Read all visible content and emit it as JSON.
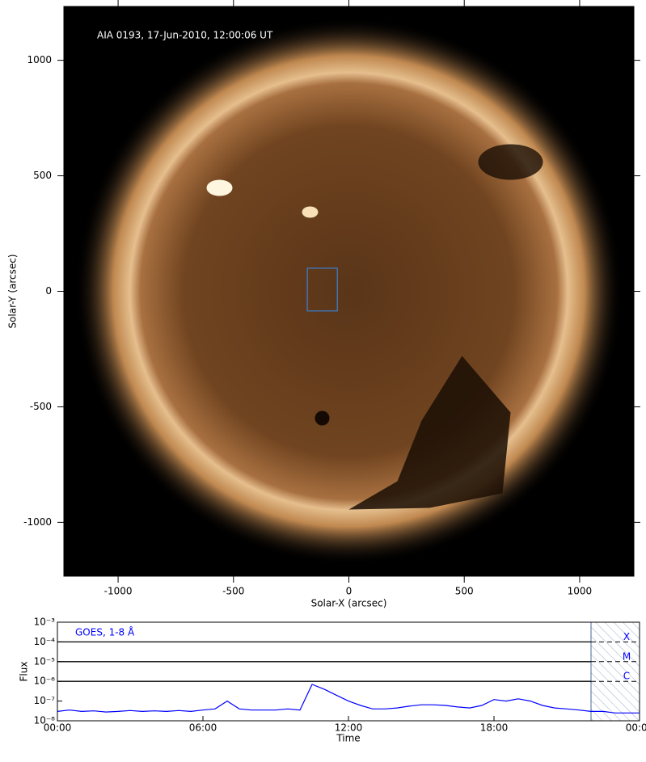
{
  "chart_data": [
    {
      "type": "image",
      "annotation": "AIA 0193, 17-Jun-2010, 12:00:06 UT",
      "xlabel": "Solar-X (arcsec)",
      "ylabel": "Solar-Y (arcsec)",
      "xlim": [
        -1235,
        1235
      ],
      "ylim": [
        -1233,
        1233
      ],
      "xticks": [
        -1000,
        -500,
        0,
        500,
        1000
      ],
      "yticks": [
        -1000,
        -500,
        0,
        500,
        1000
      ],
      "disk_radius": 950,
      "box": {
        "x": [
          -180,
          -50
        ],
        "y": [
          -85,
          100
        ],
        "color": "#3a7fd0"
      }
    },
    {
      "type": "line",
      "log_y": true,
      "xlabel": "Time",
      "ylabel": "Flux",
      "xlim": [
        0,
        24
      ],
      "xticks": [
        {
          "value": 0,
          "label": "00:00"
        },
        {
          "value": 6,
          "label": "06:00"
        },
        {
          "value": 12,
          "label": "12:00"
        },
        {
          "value": 18,
          "label": "18:00"
        },
        {
          "value": 24,
          "label": "00:00"
        }
      ],
      "ylim": [
        1e-08,
        0.001
      ],
      "yticks": [
        {
          "value": 1e-08,
          "label": "10⁻⁸"
        },
        {
          "value": 1e-07,
          "label": "10⁻⁷"
        },
        {
          "value": 1e-06,
          "label": "10⁻⁶"
        },
        {
          "value": 1e-05,
          "label": "10⁻⁵"
        },
        {
          "value": 0.0001,
          "label": "10⁻⁴"
        },
        {
          "value": 0.001,
          "label": "10⁻³"
        }
      ],
      "flare_classes": [
        {
          "label": "X",
          "value": 0.0001
        },
        {
          "label": "M",
          "value": 1e-05
        },
        {
          "label": "C",
          "value": 1e-06
        }
      ],
      "shaded_range": [
        22,
        24
      ],
      "x": [
        0,
        0.5,
        1,
        1.5,
        2,
        2.5,
        3,
        3.5,
        4,
        4.5,
        5,
        5.5,
        6,
        6.5,
        7,
        7.5,
        8,
        8.5,
        9,
        9.5,
        10,
        10.5,
        11,
        11.5,
        12,
        12.5,
        13,
        13.5,
        14,
        14.5,
        15,
        15.5,
        16,
        16.5,
        17,
        17.5,
        18,
        18.5,
        19,
        19.5,
        20,
        20.5,
        21,
        21.5,
        22,
        22.5,
        23,
        23.5,
        24
      ],
      "series": [
        {
          "name": "GOES, 1-8 Å",
          "color": "#0000ff",
          "values": [
            3e-08,
            3.5e-08,
            3e-08,
            3.2e-08,
            2.8e-08,
            3e-08,
            3.3e-08,
            3e-08,
            3.2e-08,
            3e-08,
            3.3e-08,
            3e-08,
            3.5e-08,
            4e-08,
            1e-07,
            4e-08,
            3.5e-08,
            3.5e-08,
            3.5e-08,
            4e-08,
            3.5e-08,
            7e-07,
            4e-07,
            2e-07,
            1e-07,
            6e-08,
            4e-08,
            4e-08,
            4.5e-08,
            5.5e-08,
            6.5e-08,
            6.5e-08,
            6e-08,
            5e-08,
            4.5e-08,
            6e-08,
            1.2e-07,
            1e-07,
            1.3e-07,
            1e-07,
            6e-08,
            4.5e-08,
            4e-08,
            3.5e-08,
            3e-08,
            3e-08,
            2.5e-08,
            2.5e-08,
            2.5e-08
          ]
        }
      ]
    }
  ]
}
